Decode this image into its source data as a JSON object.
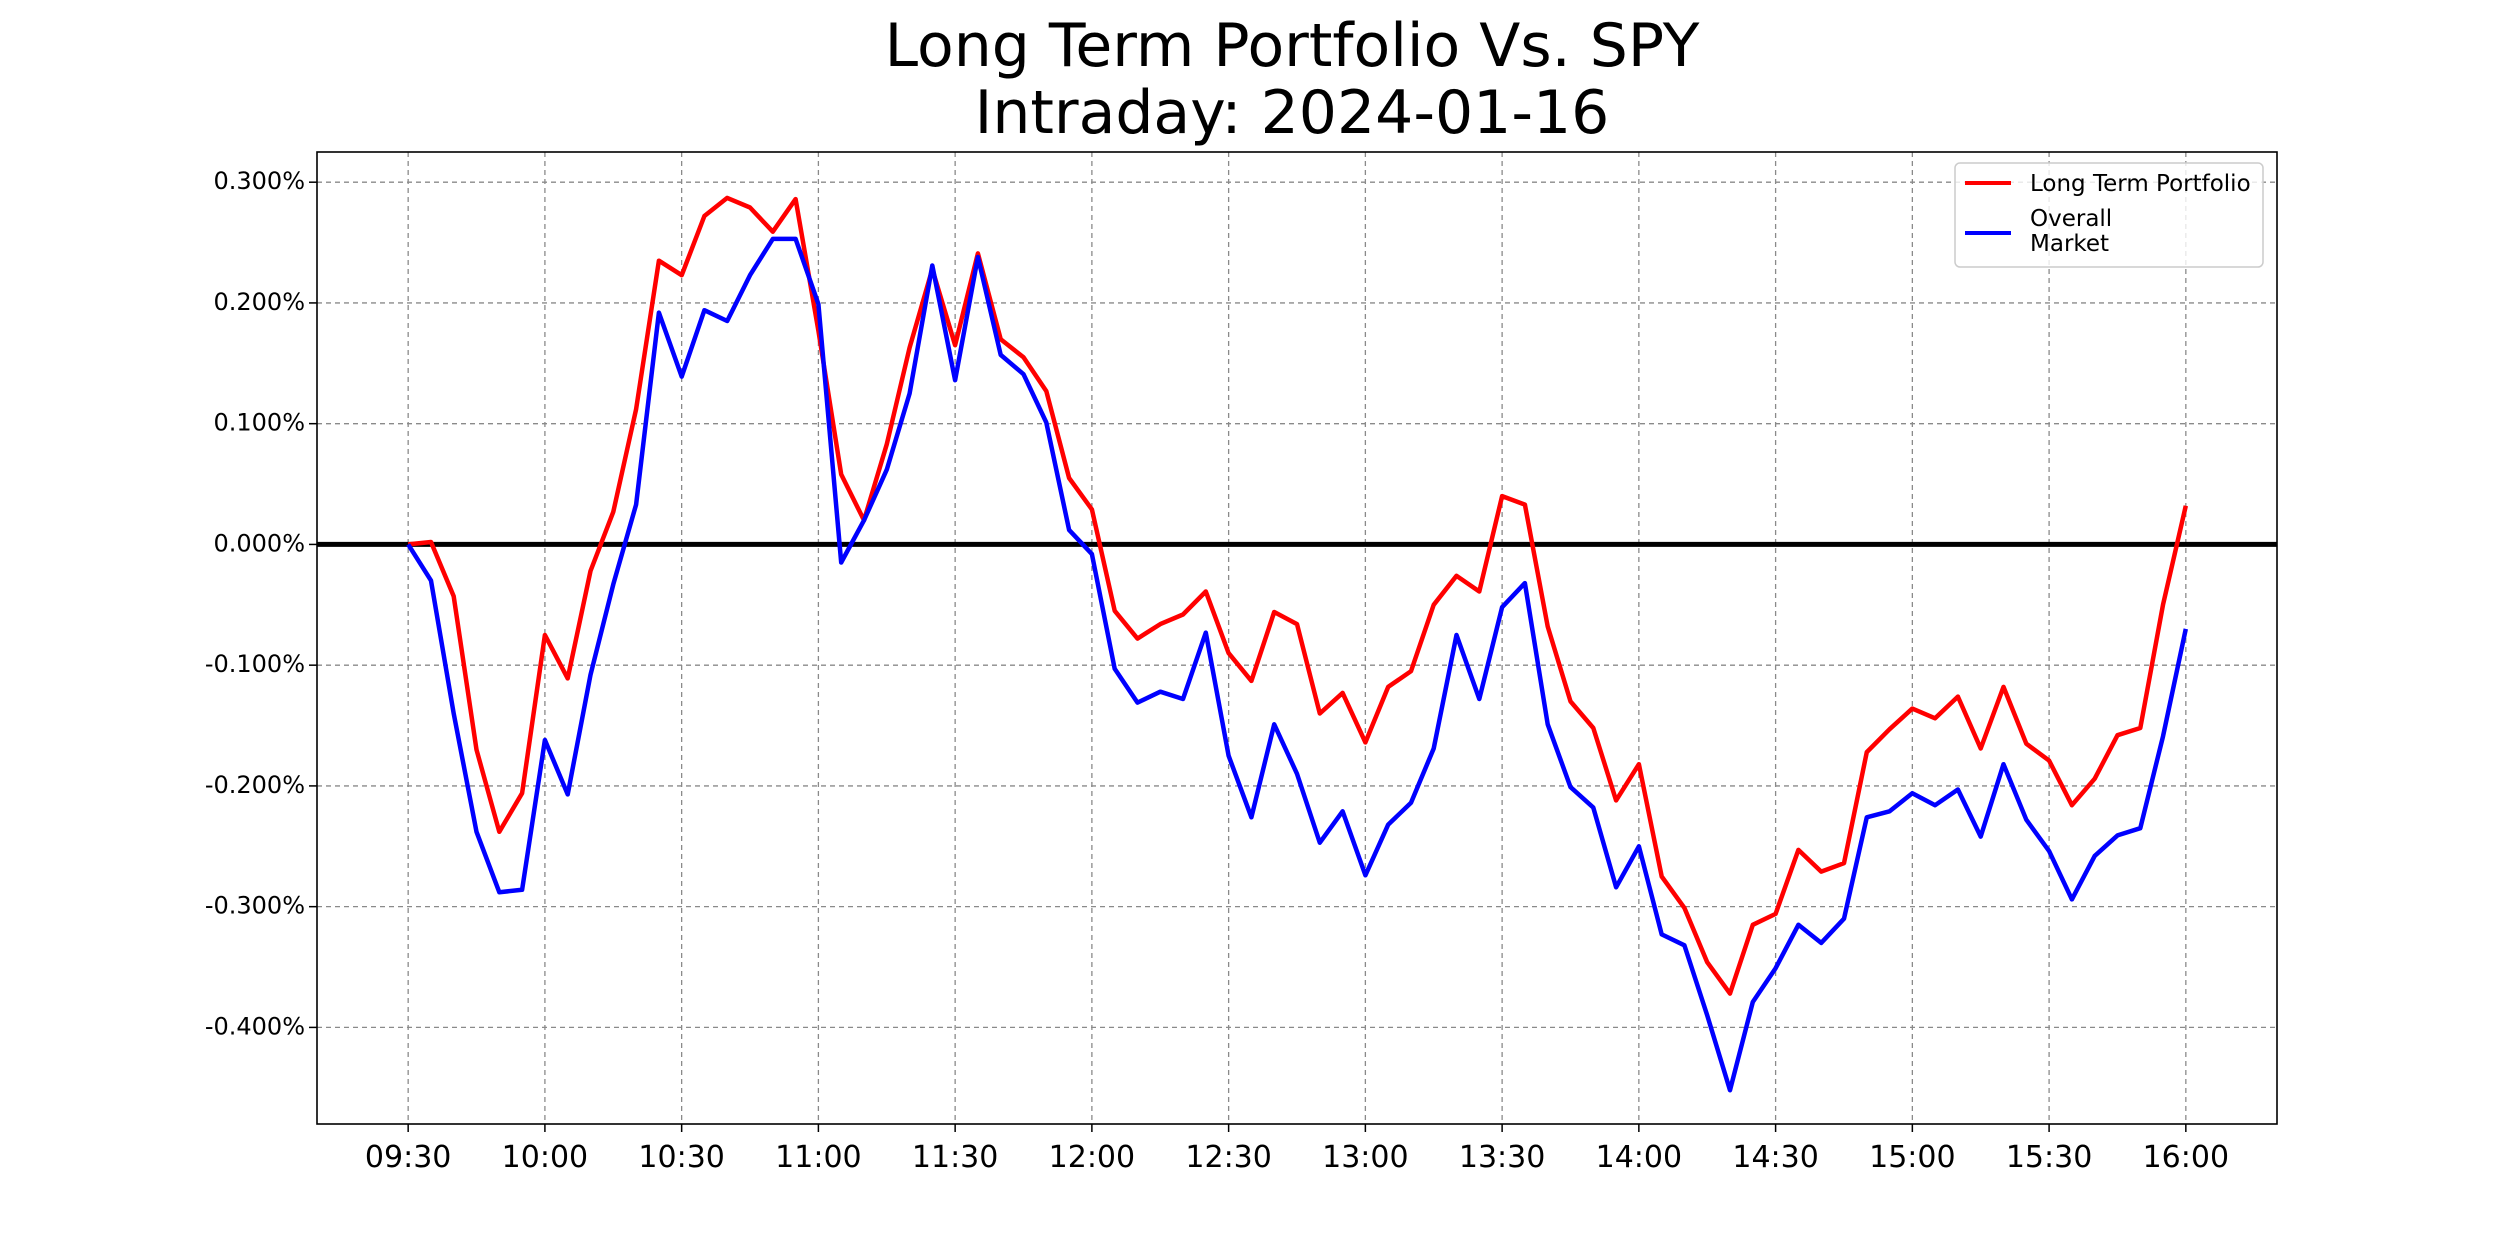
{
  "chart_data": {
    "type": "line",
    "title": "Long Term Portfolio Vs. SPY",
    "subtitle": "Intraday: 2024-01-16",
    "x_start": "09:30",
    "x_end": "16:00",
    "x_interval_minutes": 5,
    "xticks": [
      "09:30",
      "10:00",
      "10:30",
      "11:00",
      "11:30",
      "12:00",
      "12:30",
      "13:00",
      "13:30",
      "14:00",
      "14:30",
      "15:00",
      "15:30",
      "16:00"
    ],
    "yticks": [
      "0.300%",
      "0.200%",
      "0.100%",
      "0.000%",
      "-0.100%",
      "-0.200%",
      "-0.300%",
      "-0.400%"
    ],
    "ylim": [
      -0.48,
      0.325
    ],
    "xlim": [
      "09:10",
      "16:20"
    ],
    "grid": true,
    "zero_line": true,
    "legend_position": "top-right",
    "legend": [
      "Long Term Portfolio",
      "Overall\nMarket"
    ],
    "series": [
      {
        "name": "Long Term Portfolio",
        "color": "#ff0000",
        "values": [
          0.0,
          0.002,
          -0.043,
          -0.17,
          -0.238,
          -0.206,
          -0.075,
          -0.111,
          -0.022,
          0.027,
          0.112,
          0.235,
          0.223,
          0.272,
          0.287,
          0.279,
          0.259,
          0.286,
          0.177,
          0.058,
          0.02,
          0.083,
          0.163,
          0.228,
          0.165,
          0.241,
          0.17,
          0.155,
          0.127,
          0.055,
          0.029,
          -0.055,
          -0.078,
          -0.066,
          -0.058,
          -0.039,
          -0.09,
          -0.113,
          -0.056,
          -0.066,
          -0.14,
          -0.123,
          -0.164,
          -0.118,
          -0.105,
          -0.05,
          -0.026,
          -0.039,
          0.04,
          0.033,
          -0.068,
          -0.13,
          -0.152,
          -0.212,
          -0.182,
          -0.275,
          -0.301,
          -0.346,
          -0.372,
          -0.315,
          -0.306,
          -0.253,
          -0.271,
          -0.264,
          -0.172,
          -0.153,
          -0.136,
          -0.144,
          -0.126,
          -0.169,
          -0.118,
          -0.165,
          -0.179,
          -0.216,
          -0.194,
          -0.158,
          -0.152,
          -0.05,
          0.032
        ]
      },
      {
        "name": "Overall\nMarket",
        "color": "#0000ff",
        "values": [
          0.0,
          -0.03,
          -0.14,
          -0.238,
          -0.288,
          -0.286,
          -0.162,
          -0.207,
          -0.108,
          -0.033,
          0.033,
          0.192,
          0.139,
          0.194,
          0.185,
          0.223,
          0.253,
          0.253,
          0.199,
          -0.015,
          0.02,
          0.062,
          0.125,
          0.231,
          0.136,
          0.238,
          0.157,
          0.141,
          0.101,
          0.012,
          -0.008,
          -0.103,
          -0.131,
          -0.122,
          -0.128,
          -0.073,
          -0.175,
          -0.226,
          -0.149,
          -0.19,
          -0.247,
          -0.221,
          -0.274,
          -0.232,
          -0.214,
          -0.169,
          -0.075,
          -0.128,
          -0.052,
          -0.032,
          -0.149,
          -0.201,
          -0.218,
          -0.284,
          -0.25,
          -0.323,
          -0.332,
          -0.39,
          -0.452,
          -0.379,
          -0.351,
          -0.315,
          -0.33,
          -0.31,
          -0.226,
          -0.221,
          -0.206,
          -0.216,
          -0.203,
          -0.242,
          -0.182,
          -0.228,
          -0.254,
          -0.294,
          -0.258,
          -0.241,
          -0.235,
          -0.159,
          -0.07
        ]
      }
    ]
  }
}
